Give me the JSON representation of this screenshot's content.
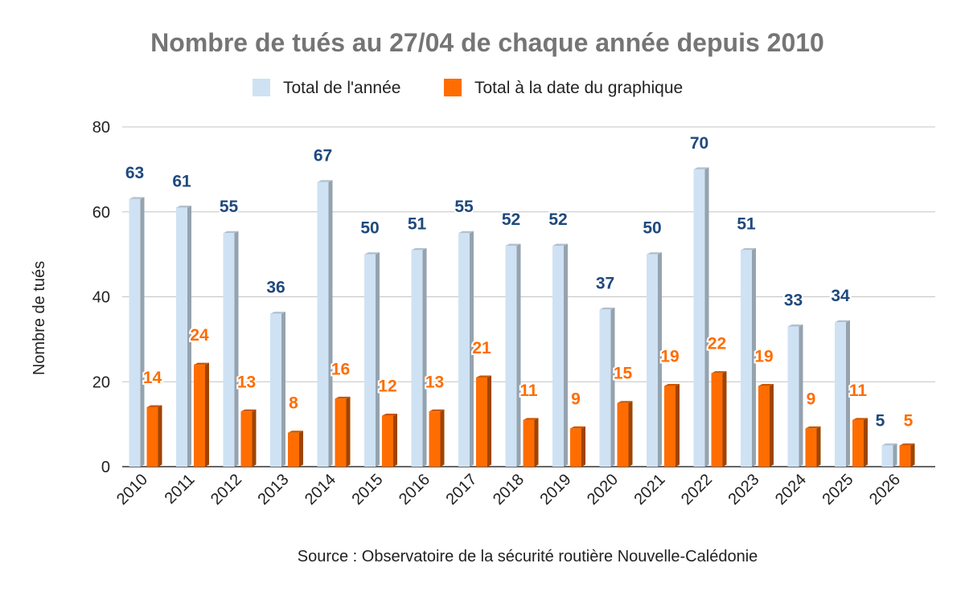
{
  "chart_data": {
    "type": "bar",
    "title": "Nombre de tués au 27/04 de chaque année depuis 2010",
    "ylabel": "Nombre de tués",
    "xlabel": "",
    "source": "Source : Observatoire de la sécurité routière Nouvelle-Calédonie",
    "ylim": [
      0,
      80
    ],
    "yticks": [
      0,
      20,
      40,
      60,
      80
    ],
    "grid": true,
    "legend_position": "top-center",
    "categories": [
      "2010",
      "2011",
      "2012",
      "2013",
      "2014",
      "2015",
      "2016",
      "2017",
      "2018",
      "2019",
      "2020",
      "2021",
      "2022",
      "2023",
      "2024",
      "2025",
      "2026"
    ],
    "series": [
      {
        "name": "Total de l'année",
        "color": "#cfe2f3",
        "label_color": "#1f497d",
        "values": [
          63,
          61,
          55,
          36,
          67,
          50,
          51,
          55,
          52,
          52,
          37,
          50,
          70,
          51,
          33,
          34,
          5
        ]
      },
      {
        "name": "Total à la date du graphique",
        "color": "#ff6d01",
        "label_color": "#ff6d01",
        "values": [
          14,
          24,
          13,
          8,
          16,
          12,
          13,
          21,
          11,
          9,
          15,
          19,
          22,
          19,
          9,
          11,
          5
        ]
      }
    ]
  }
}
